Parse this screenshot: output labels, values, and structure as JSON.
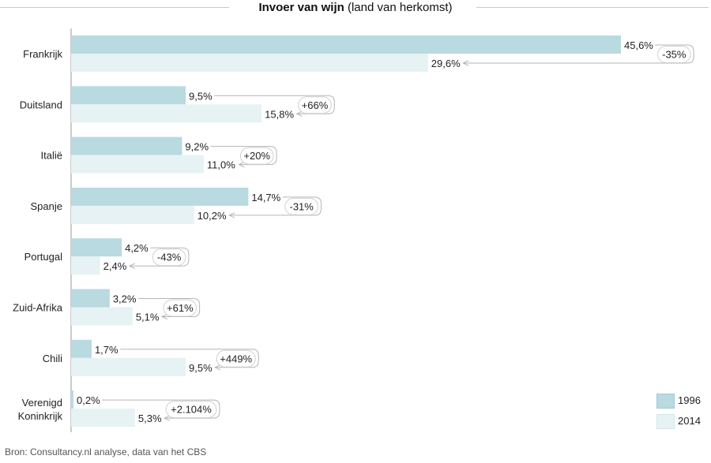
{
  "title": {
    "bold": "Invoer van wijn",
    "rest": " (land van herkomst)"
  },
  "source": "Bron: Consultancy.nl analyse, data van het CBS",
  "colors": {
    "series_1996": "#b8dae0",
    "series_2014": "#e6f2f3",
    "axis": "#9a9a9a",
    "arrow": "#b5b5b5"
  },
  "legend": {
    "items": [
      {
        "label": "1996"
      },
      {
        "label": "2014"
      }
    ]
  },
  "chart_data": {
    "type": "bar",
    "orientation": "horizontal",
    "categories": [
      "Frankrijk",
      "Duitsland",
      "Italië",
      "Spanje",
      "Portugal",
      "Zuid-Afrika",
      "Chili",
      "Verenigd Koninkrijk"
    ],
    "category_lines": [
      [
        "Frankrijk"
      ],
      [
        "Duitsland"
      ],
      [
        "Italië"
      ],
      [
        "Spanje"
      ],
      [
        "Portugal"
      ],
      [
        "Zuid-Afrika"
      ],
      [
        "Chili"
      ],
      [
        "Verenigd",
        "Koninkrijk"
      ]
    ],
    "series": [
      {
        "name": "1996",
        "values": [
          45.6,
          9.5,
          9.2,
          14.7,
          4.2,
          3.2,
          1.7,
          0.2
        ],
        "labels": [
          "45,6%",
          "9,5%",
          "9,2%",
          "14,7%",
          "4,2%",
          "3,2%",
          "1,7%",
          "0,2%"
        ]
      },
      {
        "name": "2014",
        "values": [
          29.6,
          15.8,
          11.0,
          10.2,
          2.4,
          5.1,
          9.5,
          5.3
        ],
        "labels": [
          "29,6%",
          "15,8%",
          "11,0%",
          "10,2%",
          "2,4%",
          "5,1%",
          "9,5%",
          "5,3%"
        ]
      }
    ],
    "change_labels": [
      "-35%",
      "+66%",
      "+20%",
      "-31%",
      "-43%",
      "+61%",
      "+449%",
      "+2.104%"
    ],
    "xlim": [
      0,
      45.6
    ],
    "grid": false,
    "legend_position": "bottom-right"
  }
}
